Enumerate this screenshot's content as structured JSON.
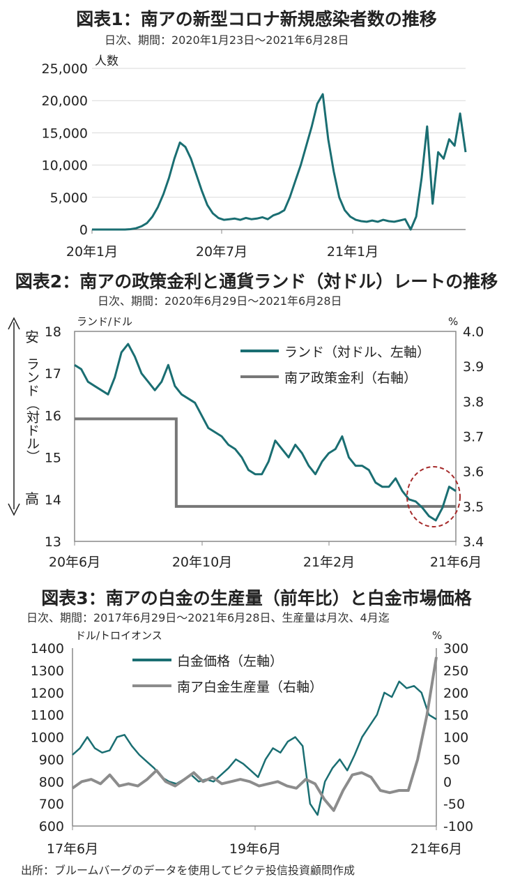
{
  "colors": {
    "teal": "#1a6e72",
    "gray": "#777777",
    "axis": "#888888",
    "grid": "#d9d9d9",
    "dashed": "#a52a2a"
  },
  "charts": [
    {
      "id": "c1",
      "title": "図表1：南アの新型コロナ新規感染者数の推移",
      "subtitle": "日次、期間：2020年1月23日～2021年6月28日",
      "chart_data": {
        "type": "line",
        "ylabel": "人数",
        "ylim": [
          0,
          25000
        ],
        "yticks": [
          "25,000",
          "20,000",
          "15,000",
          "10,000",
          "5,000",
          "0"
        ],
        "xticks": [
          "20年1月",
          "20年7月",
          "21年1月"
        ],
        "grid": true,
        "series": [
          {
            "values": [
              0,
              0,
              0,
              0,
              0,
              0,
              0,
              50,
              200,
              500,
              1000,
              2000,
              3500,
              5500,
              8000,
              11000,
              13500,
              12800,
              11000,
              8500,
              6000,
              3800,
              2500,
              1800,
              1500,
              1600,
              1700,
              1500,
              1800,
              1600,
              1700,
              1900,
              1600,
              2200,
              2500,
              3000,
              5000,
              7500,
              10000,
              13000,
              16000,
              19500,
              21000,
              14000,
              9000,
              5000,
              3000,
              2000,
              1500,
              1300,
              1200,
              1400,
              1200,
              1500,
              1300,
              1200,
              1400,
              1600,
              0,
              2000,
              8000,
              16000,
              4000,
              12000,
              11000,
              14000,
              13000,
              18000,
              12000
            ]
          }
        ]
      }
    },
    {
      "id": "c2",
      "title": "図表2：南アの政策金利と通貨ランド（対ドル）レートの推移",
      "subtitle": "日次、期間：2020年6月29日～2021年6月28日",
      "chart_data": {
        "type": "line",
        "ylabel_left": "ランド/ドル",
        "ylabel_right": "%",
        "ylim_left": [
          13,
          18
        ],
        "ylim_right": [
          3.4,
          4.0
        ],
        "yticks_left": [
          "18",
          "17",
          "16",
          "15",
          "14",
          "13"
        ],
        "yticks_right": [
          "4.0",
          "3.9",
          "3.8",
          "3.7",
          "3.6",
          "3.5",
          "3.4"
        ],
        "xticks": [
          "20年6月",
          "20年10月",
          "21年2月",
          "21年6月"
        ],
        "arrow_top": "安",
        "arrow_mid": "ランド（対ドル）",
        "arrow_bottom": "高",
        "series": [
          {
            "name": "ランド（対ドル、左軸）",
            "axis": "left",
            "values": [
              17.2,
              17.1,
              16.8,
              16.7,
              16.6,
              16.5,
              16.9,
              17.5,
              17.7,
              17.4,
              17.0,
              16.8,
              16.6,
              16.8,
              17.2,
              16.7,
              16.5,
              16.4,
              16.3,
              16.0,
              15.7,
              15.6,
              15.5,
              15.3,
              15.2,
              15.0,
              14.7,
              14.6,
              14.6,
              14.9,
              15.4,
              15.2,
              15.0,
              15.3,
              15.1,
              14.8,
              14.6,
              14.9,
              15.1,
              15.2,
              15.5,
              15.0,
              14.8,
              14.8,
              14.7,
              14.4,
              14.3,
              14.3,
              14.5,
              14.2,
              14.0,
              13.95,
              13.8,
              13.6,
              13.5,
              13.8,
              14.3,
              14.2
            ]
          },
          {
            "name": "南ア政策金利（右軸）",
            "axis": "right",
            "values": [
              3.75,
              3.75,
              3.75,
              3.75,
              3.5,
              3.5,
              3.5,
              3.5,
              3.5,
              3.5,
              3.5,
              3.5,
              3.5,
              3.5,
              3.5,
              3.5
            ]
          }
        ]
      }
    },
    {
      "id": "c3",
      "title": "図表3：南アの白金の生産量（前年比）と白金市場価格",
      "subtitle": "日次、期間：2017年6月29日～2021年6月28日、生産量は月次、4月迄",
      "chart_data": {
        "type": "line",
        "ylabel_left": "ドル/トロイオンス",
        "ylabel_right": "%",
        "ylim_left": [
          600,
          1400
        ],
        "ylim_right": [
          -100,
          300
        ],
        "yticks_left": [
          "1400",
          "1300",
          "1200",
          "1100",
          "1000",
          "900",
          "800",
          "700",
          "600"
        ],
        "yticks_right": [
          "300",
          "250",
          "200",
          "150",
          "100",
          "50",
          "0",
          "-50",
          "-100"
        ],
        "xticks": [
          "17年6月",
          "19年6月",
          "21年6月"
        ],
        "series": [
          {
            "name": "白金価格（左軸）",
            "axis": "left",
            "values": [
              920,
              950,
              1000,
              950,
              930,
              940,
              1000,
              1010,
              960,
              920,
              890,
              860,
              820,
              800,
              790,
              810,
              830,
              800,
              810,
              800,
              830,
              860,
              900,
              880,
              850,
              820,
              900,
              950,
              930,
              980,
              1000,
              960,
              700,
              650,
              800,
              860,
              900,
              850,
              920,
              1000,
              1050,
              1100,
              1200,
              1180,
              1250,
              1220,
              1230,
              1200,
              1100,
              1080
            ]
          },
          {
            "name": "南ア白金生産量（右軸）",
            "axis": "right",
            "values": [
              -15,
              0,
              5,
              -5,
              15,
              -10,
              -5,
              -10,
              5,
              25,
              0,
              -10,
              5,
              20,
              0,
              10,
              -5,
              0,
              5,
              0,
              -10,
              -5,
              0,
              -10,
              -15,
              5,
              -5,
              -40,
              -65,
              -20,
              15,
              20,
              10,
              -20,
              -25,
              -20,
              -20,
              50,
              150,
              280
            ]
          }
        ]
      }
    }
  ],
  "source": "出所：ブルームバーグのデータを使用してピクテ投信投資顧問作成"
}
